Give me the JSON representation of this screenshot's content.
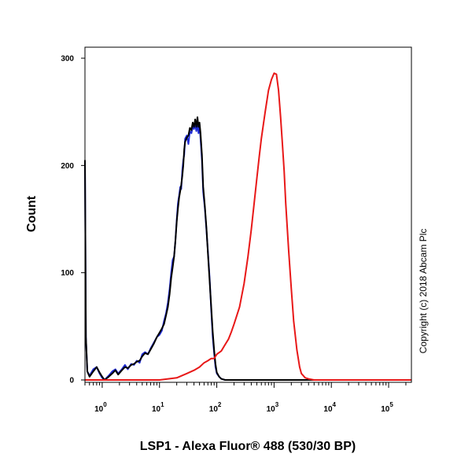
{
  "chart_data": {
    "type": "line",
    "title": "",
    "xlabel": "LSP1 - Alexa Fluor® 488 (530/30 BP)",
    "ylabel": "Count",
    "x_scale": "log",
    "xlim": [
      0.5,
      250000
    ],
    "ylim": [
      0,
      305
    ],
    "x_ticks": [
      {
        "base": "10",
        "exp": "0",
        "value": 1
      },
      {
        "base": "10",
        "exp": "1",
        "value": 10
      },
      {
        "base": "10",
        "exp": "2",
        "value": 100
      },
      {
        "base": "10",
        "exp": "3",
        "value": 1000
      },
      {
        "base": "10",
        "exp": "4",
        "value": 10000
      },
      {
        "base": "10",
        "exp": "5",
        "value": 100000
      }
    ],
    "y_ticks": [
      {
        "label": "0",
        "value": 0
      },
      {
        "label": "100",
        "value": 100
      },
      {
        "label": "200",
        "value": 200
      },
      {
        "label": "300",
        "value": 300
      }
    ],
    "grid": false,
    "legend": "none",
    "annotation": "Copyright (c) 2018 Abcam Plc",
    "series": [
      {
        "color": "#1f2bd6",
        "points": [
          [
            0.5,
            205
          ],
          [
            0.52,
            40
          ],
          [
            0.55,
            8
          ],
          [
            0.6,
            4
          ],
          [
            0.7,
            10
          ],
          [
            0.8,
            12
          ],
          [
            0.9,
            6
          ],
          [
            1.0,
            2
          ],
          [
            1.1,
            0
          ],
          [
            1.3,
            4
          ],
          [
            1.5,
            8
          ],
          [
            1.7,
            10
          ],
          [
            1.9,
            6
          ],
          [
            2.2,
            10
          ],
          [
            2.5,
            14
          ],
          [
            2.8,
            10
          ],
          [
            3.2,
            15
          ],
          [
            3.6,
            14
          ],
          [
            4.0,
            18
          ],
          [
            4.5,
            16
          ],
          [
            5.0,
            24
          ],
          [
            5.6,
            26
          ],
          [
            6.3,
            24
          ],
          [
            7.1,
            30
          ],
          [
            8.0,
            35
          ],
          [
            9.0,
            40
          ],
          [
            10,
            42
          ],
          [
            11,
            46
          ],
          [
            12,
            55
          ],
          [
            13,
            62
          ],
          [
            14,
            72
          ],
          [
            15,
            85
          ],
          [
            16,
            100
          ],
          [
            17,
            112
          ],
          [
            18,
            115
          ],
          [
            19,
            130
          ],
          [
            20,
            150
          ],
          [
            21,
            165
          ],
          [
            22,
            172
          ],
          [
            23,
            180
          ],
          [
            24,
            178
          ],
          [
            25,
            195
          ],
          [
            26,
            205
          ],
          [
            27,
            210
          ],
          [
            28,
            225
          ],
          [
            30,
            228
          ],
          [
            32,
            220
          ],
          [
            34,
            232
          ],
          [
            36,
            230
          ],
          [
            38,
            236
          ],
          [
            40,
            234
          ],
          [
            42,
            238
          ],
          [
            44,
            232
          ],
          [
            46,
            240
          ],
          [
            48,
            230
          ],
          [
            50,
            238
          ],
          [
            52,
            225
          ],
          [
            55,
            205
          ],
          [
            58,
            175
          ],
          [
            62,
            160
          ],
          [
            66,
            140
          ],
          [
            70,
            120
          ],
          [
            75,
            95
          ],
          [
            80,
            65
          ],
          [
            85,
            40
          ],
          [
            90,
            25
          ],
          [
            95,
            12
          ],
          [
            100,
            6
          ],
          [
            110,
            3
          ],
          [
            120,
            1
          ],
          [
            140,
            0
          ],
          [
            200,
            0
          ],
          [
            250000,
            0
          ]
        ]
      },
      {
        "color": "#000000",
        "points": [
          [
            0.5,
            205
          ],
          [
            0.52,
            40
          ],
          [
            0.55,
            8
          ],
          [
            0.6,
            3
          ],
          [
            0.7,
            8
          ],
          [
            0.8,
            12
          ],
          [
            0.9,
            7
          ],
          [
            1.0,
            3
          ],
          [
            1.1,
            0
          ],
          [
            1.3,
            3
          ],
          [
            1.5,
            6
          ],
          [
            1.7,
            9
          ],
          [
            1.9,
            5
          ],
          [
            2.2,
            9
          ],
          [
            2.5,
            12
          ],
          [
            2.8,
            11
          ],
          [
            3.2,
            14
          ],
          [
            3.6,
            15
          ],
          [
            4.0,
            17
          ],
          [
            4.5,
            18
          ],
          [
            5.0,
            22
          ],
          [
            5.6,
            25
          ],
          [
            6.3,
            24
          ],
          [
            7.1,
            29
          ],
          [
            8.0,
            34
          ],
          [
            9.0,
            40
          ],
          [
            10,
            44
          ],
          [
            11,
            48
          ],
          [
            12,
            52
          ],
          [
            13,
            60
          ],
          [
            14,
            68
          ],
          [
            15,
            80
          ],
          [
            16,
            95
          ],
          [
            17,
            105
          ],
          [
            18,
            115
          ],
          [
            19,
            130
          ],
          [
            20,
            148
          ],
          [
            21,
            160
          ],
          [
            22,
            170
          ],
          [
            23,
            176
          ],
          [
            24,
            182
          ],
          [
            25,
            190
          ],
          [
            26,
            200
          ],
          [
            27,
            215
          ],
          [
            28,
            222
          ],
          [
            30,
            226
          ],
          [
            32,
            228
          ],
          [
            34,
            235
          ],
          [
            36,
            233
          ],
          [
            38,
            240
          ],
          [
            40,
            236
          ],
          [
            42,
            243
          ],
          [
            44,
            236
          ],
          [
            46,
            245
          ],
          [
            48,
            236
          ],
          [
            50,
            240
          ],
          [
            52,
            230
          ],
          [
            55,
            210
          ],
          [
            58,
            180
          ],
          [
            62,
            162
          ],
          [
            66,
            142
          ],
          [
            70,
            118
          ],
          [
            75,
            92
          ],
          [
            80,
            68
          ],
          [
            85,
            45
          ],
          [
            90,
            28
          ],
          [
            95,
            15
          ],
          [
            100,
            7
          ],
          [
            110,
            3
          ],
          [
            120,
            1
          ],
          [
            140,
            0
          ],
          [
            200,
            0
          ],
          [
            250000,
            0
          ]
        ]
      },
      {
        "color": "#e81818",
        "points": [
          [
            0.5,
            0
          ],
          [
            10,
            0
          ],
          [
            20,
            2
          ],
          [
            30,
            6
          ],
          [
            40,
            9
          ],
          [
            50,
            12
          ],
          [
            60,
            16
          ],
          [
            70,
            18
          ],
          [
            80,
            20
          ],
          [
            90,
            20
          ],
          [
            100,
            24
          ],
          [
            120,
            27
          ],
          [
            140,
            33
          ],
          [
            160,
            38
          ],
          [
            180,
            45
          ],
          [
            200,
            52
          ],
          [
            250,
            68
          ],
          [
            300,
            90
          ],
          [
            350,
            115
          ],
          [
            400,
            140
          ],
          [
            450,
            165
          ],
          [
            500,
            188
          ],
          [
            550,
            208
          ],
          [
            600,
            225
          ],
          [
            700,
            250
          ],
          [
            800,
            270
          ],
          [
            900,
            280
          ],
          [
            1000,
            286
          ],
          [
            1100,
            285
          ],
          [
            1200,
            270
          ],
          [
            1300,
            245
          ],
          [
            1400,
            220
          ],
          [
            1500,
            195
          ],
          [
            1600,
            165
          ],
          [
            1800,
            120
          ],
          [
            2000,
            85
          ],
          [
            2200,
            55
          ],
          [
            2500,
            28
          ],
          [
            2800,
            12
          ],
          [
            3000,
            6
          ],
          [
            3500,
            2
          ],
          [
            4000,
            1
          ],
          [
            5000,
            0
          ],
          [
            250000,
            0
          ]
        ]
      }
    ]
  }
}
